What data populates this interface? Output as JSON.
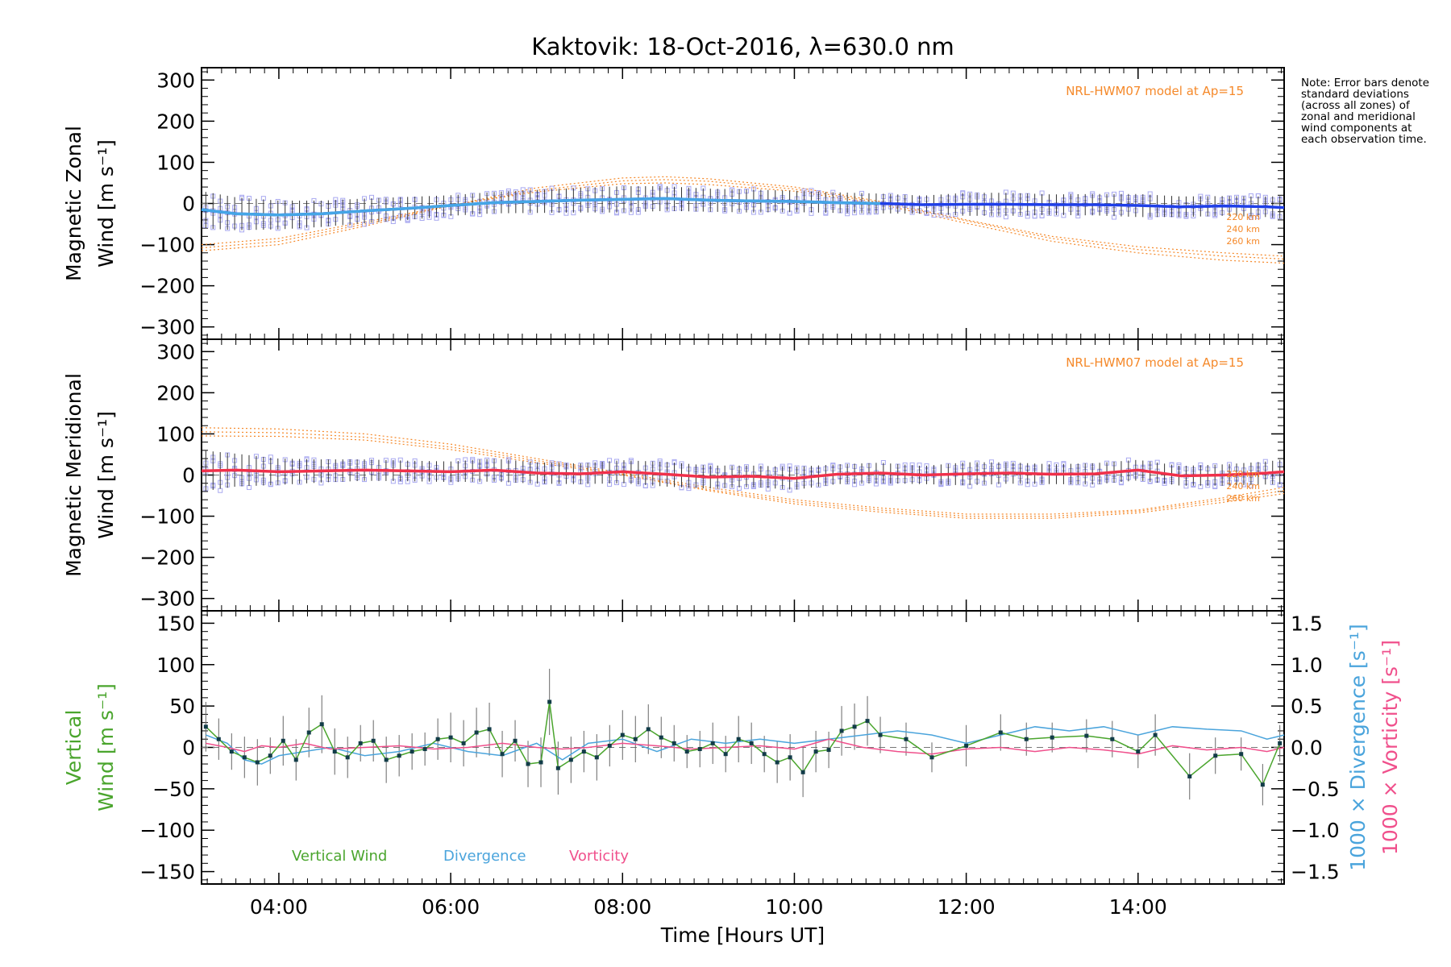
{
  "chart_data": {
    "title": "Kaktovik: 18-Oct-2016, λ=630.0 nm",
    "note": "Note: Error bars denote standard deviations (across all zones) of zonal and meridional wind components at each observation time.",
    "xlabel": "Time [Hours UT]",
    "x_unit": "hours UT",
    "xlim": [
      3.1,
      15.7
    ],
    "x_ticks": [
      {
        "value": 4,
        "label": "04:00"
      },
      {
        "value": 6,
        "label": "06:00"
      },
      {
        "value": 8,
        "label": "08:00"
      },
      {
        "value": 10,
        "label": "10:00"
      },
      {
        "value": 12,
        "label": "12:00"
      },
      {
        "value": 14,
        "label": "14:00"
      }
    ],
    "colors": {
      "zonal": "#1f3fe8",
      "zonal_light": "#45a6e6",
      "meridional": "#f0304a",
      "model": "#f5892a",
      "scatter": "#a9a9f0",
      "vertical": "#4aa52d",
      "divergence": "#4aa4dc",
      "vorticity": "#f0508c"
    },
    "panels": [
      {
        "type": "line",
        "ylabel_lines": [
          "Magnetic Zonal",
          "Wind [m s⁻¹]"
        ],
        "ylim": [
          -330,
          330
        ],
        "yticks": [
          -300,
          -200,
          -100,
          0,
          100,
          200,
          300
        ],
        "ytick_labels": [
          "−300",
          "−200",
          "−100",
          "0",
          "100",
          "200",
          "300"
        ],
        "model_label": "NRL-HWM07 model at Ap=15",
        "model_alt_labels": [
          "220 km",
          "240 km",
          "260 km"
        ],
        "series": [
          {
            "role": "mean",
            "x": [
              3.1,
              3.5,
              4.0,
              4.5,
              5.0,
              5.5,
              6.0,
              6.5,
              7.0,
              7.5,
              8.0,
              8.5,
              9.0,
              9.5,
              10.0,
              10.5,
              11.0,
              11.5,
              12.0,
              12.5,
              13.0,
              13.5,
              14.0,
              14.5,
              15.0,
              15.5,
              15.7
            ],
            "values": [
              -15,
              -25,
              -28,
              -25,
              -18,
              -12,
              -5,
              2,
              5,
              8,
              10,
              12,
              8,
              6,
              5,
              2,
              0,
              -3,
              -2,
              -2,
              -3,
              -3,
              -5,
              -8,
              -6,
              -8,
              -10
            ],
            "errors": [
              45,
              40,
              35,
              32,
              30,
              28,
              25,
              26,
              28,
              30,
              32,
              30,
              28,
              28,
              26,
              25,
              24,
              22,
              28,
              28,
              25,
              26,
              28,
              25,
              24,
              25,
              28
            ]
          }
        ],
        "model": [
          {
            "name": "220 km",
            "x": [
              3.1,
              4.0,
              5.0,
              6.0,
              7.0,
              8.0,
              8.5,
              9.0,
              10.0,
              11.0,
              12.0,
              13.0,
              14.0,
              15.0,
              15.7
            ],
            "values": [
              -115,
              -100,
              -55,
              -5,
              38,
              62,
              65,
              60,
              40,
              5,
              -40,
              -80,
              -105,
              -120,
              -128
            ]
          },
          {
            "name": "240 km",
            "x": [
              3.1,
              4.0,
              5.0,
              6.0,
              7.0,
              8.0,
              8.5,
              9.0,
              10.0,
              11.0,
              12.0,
              13.0,
              14.0,
              15.0,
              15.7
            ],
            "values": [
              -108,
              -92,
              -50,
              -5,
              32,
              55,
              58,
              54,
              35,
              2,
              -42,
              -85,
              -112,
              -128,
              -135
            ]
          },
          {
            "name": "260 km",
            "x": [
              3.1,
              4.0,
              5.0,
              6.0,
              7.0,
              8.0,
              8.5,
              9.0,
              10.0,
              11.0,
              12.0,
              13.0,
              14.0,
              15.0,
              15.7
            ],
            "values": [
              -100,
              -85,
              -45,
              -4,
              28,
              48,
              50,
              46,
              30,
              -2,
              -48,
              -92,
              -120,
              -138,
              -145
            ]
          }
        ]
      },
      {
        "type": "line",
        "ylabel_lines": [
          "Magnetic Meridional",
          "Wind [m s⁻¹]"
        ],
        "ylim": [
          -330,
          330
        ],
        "yticks": [
          -300,
          -200,
          -100,
          0,
          100,
          200,
          300
        ],
        "ytick_labels": [
          "−300",
          "−200",
          "−100",
          "0",
          "100",
          "200",
          "300"
        ],
        "model_label": "NRL-HWM07 model at Ap=15",
        "model_alt_labels": [
          "220 km",
          "240 km",
          "260 km"
        ],
        "series": [
          {
            "role": "mean",
            "x": [
              3.1,
              3.5,
              4.0,
              4.5,
              5.0,
              5.5,
              6.0,
              6.5,
              7.0,
              7.5,
              8.0,
              8.5,
              9.0,
              9.5,
              10.0,
              10.5,
              11.0,
              11.5,
              12.0,
              12.5,
              13.0,
              13.5,
              14.0,
              14.5,
              15.0,
              15.5,
              15.7
            ],
            "values": [
              10,
              12,
              8,
              10,
              12,
              10,
              8,
              12,
              5,
              3,
              8,
              2,
              -5,
              -3,
              -8,
              2,
              5,
              0,
              3,
              5,
              2,
              3,
              12,
              -2,
              0,
              5,
              8
            ],
            "errors": [
              50,
              40,
              32,
              28,
              26,
              25,
              25,
              28,
              26,
              25,
              28,
              30,
              28,
              26,
              28,
              24,
              25,
              22,
              28,
              26,
              24,
              26,
              25,
              24,
              26,
              28,
              30
            ]
          }
        ],
        "model": [
          {
            "name": "220 km",
            "x": [
              3.1,
              4.0,
              5.0,
              6.0,
              7.0,
              8.0,
              9.0,
              10.0,
              11.0,
              12.0,
              13.0,
              14.0,
              15.0,
              15.7
            ],
            "values": [
              115,
              112,
              100,
              75,
              40,
              5,
              -30,
              -60,
              -80,
              -95,
              -95,
              -85,
              -55,
              -30
            ]
          },
          {
            "name": "240 km",
            "x": [
              3.1,
              4.0,
              5.0,
              6.0,
              7.0,
              8.0,
              9.0,
              10.0,
              11.0,
              12.0,
              13.0,
              14.0,
              15.0,
              15.7
            ],
            "values": [
              105,
              103,
              92,
              68,
              35,
              2,
              -35,
              -65,
              -85,
              -100,
              -100,
              -88,
              -60,
              -38
            ]
          },
          {
            "name": "260 km",
            "x": [
              3.1,
              4.0,
              5.0,
              6.0,
              7.0,
              8.0,
              9.0,
              10.0,
              11.0,
              12.0,
              13.0,
              14.0,
              15.0,
              15.7
            ],
            "values": [
              95,
              94,
              85,
              62,
              30,
              0,
              -38,
              -70,
              -90,
              -105,
              -105,
              -92,
              -66,
              -45
            ]
          }
        ]
      },
      {
        "type": "line",
        "ylabel_lines": [
          "Vertical",
          "Wind [m s⁻¹]"
        ],
        "ylim": [
          -165,
          165
        ],
        "yticks": [
          -150,
          -100,
          -50,
          0,
          50,
          100,
          150
        ],
        "ytick_labels": [
          "−150",
          "−100",
          "−50",
          "0",
          "50",
          "100",
          "150"
        ],
        "y2label_lines": [
          "1000 × Divergence [s⁻¹]",
          "1000 × Vorticity [s⁻¹]"
        ],
        "y2lim": [
          -1.65,
          1.65
        ],
        "y2ticks": [
          -1.5,
          -1.0,
          -0.5,
          0.0,
          0.5,
          1.0,
          1.5
        ],
        "y2tick_labels": [
          "−1.5",
          "−1.0",
          "−0.5",
          "0.0",
          "0.5",
          "1.0",
          "1.5"
        ],
        "legend": [
          "Vertical Wind",
          "Divergence",
          "Vorticity"
        ],
        "series": [
          {
            "name": "Vertical Wind",
            "x": [
              3.15,
              3.3,
              3.45,
              3.6,
              3.75,
              3.9,
              4.05,
              4.2,
              4.35,
              4.5,
              4.65,
              4.8,
              4.95,
              5.1,
              5.25,
              5.4,
              5.55,
              5.7,
              5.85,
              6.0,
              6.15,
              6.3,
              6.45,
              6.6,
              6.75,
              6.9,
              7.05,
              7.15,
              7.25,
              7.4,
              7.55,
              7.7,
              7.85,
              8.0,
              8.15,
              8.3,
              8.45,
              8.6,
              8.75,
              8.9,
              9.05,
              9.2,
              9.35,
              9.5,
              9.65,
              9.8,
              9.95,
              10.1,
              10.25,
              10.4,
              10.55,
              10.7,
              10.85,
              11.0,
              11.3,
              11.6,
              12.0,
              12.4,
              12.7,
              13.0,
              13.4,
              13.7,
              14.0,
              14.2,
              14.6,
              14.9,
              15.2,
              15.45,
              15.65
            ],
            "values": [
              25,
              10,
              -5,
              -12,
              -18,
              -10,
              8,
              -15,
              18,
              28,
              -5,
              -12,
              5,
              8,
              -15,
              -10,
              -5,
              -2,
              10,
              12,
              5,
              18,
              22,
              -8,
              8,
              -20,
              -18,
              55,
              -25,
              -15,
              -5,
              -12,
              2,
              15,
              10,
              22,
              12,
              5,
              -5,
              -2,
              5,
              -8,
              10,
              5,
              -8,
              -18,
              -12,
              -30,
              -5,
              -3,
              20,
              25,
              32,
              15,
              10,
              -12,
              2,
              18,
              10,
              12,
              14,
              10,
              -5,
              15,
              -35,
              -10,
              -8,
              -45,
              5
            ],
            "errors": [
              30,
              25,
              22,
              25,
              28,
              22,
              30,
              25,
              30,
              35,
              28,
              25,
              22,
              25,
              28,
              25,
              22,
              20,
              25,
              30,
              28,
              30,
              32,
              28,
              25,
              28,
              30,
              40,
              32,
              28,
              25,
              28,
              25,
              30,
              28,
              30,
              25,
              22,
              20,
              22,
              25,
              22,
              28,
              25,
              22,
              25,
              28,
              30,
              25,
              22,
              30,
              28,
              30,
              22,
              20,
              18,
              25,
              22,
              20,
              18,
              20,
              22,
              20,
              25,
              28,
              22,
              20,
              25,
              22
            ]
          },
          {
            "name": "Divergence",
            "axis": "y2",
            "x": [
              3.15,
              3.4,
              3.6,
              3.8,
              4.0,
              4.3,
              4.6,
              5.0,
              5.4,
              5.8,
              6.2,
              6.6,
              7.0,
              7.3,
              7.6,
              8.0,
              8.4,
              8.8,
              9.2,
              9.6,
              10.0,
              10.4,
              10.8,
              11.2,
              11.6,
              12.0,
              12.4,
              12.8,
              13.2,
              13.6,
              14.0,
              14.4,
              14.8,
              15.2,
              15.5,
              15.7
            ],
            "values": [
              0.15,
              0.05,
              -0.15,
              -0.2,
              -0.1,
              -0.05,
              0.0,
              -0.1,
              -0.05,
              0.05,
              -0.05,
              -0.1,
              0.05,
              -0.15,
              0.05,
              0.1,
              -0.05,
              0.1,
              0.05,
              0.1,
              0.05,
              0.1,
              0.15,
              0.2,
              0.15,
              0.05,
              0.15,
              0.25,
              0.2,
              0.25,
              0.15,
              0.25,
              0.22,
              0.2,
              0.1,
              0.15
            ]
          },
          {
            "name": "Vorticity",
            "axis": "y2",
            "x": [
              3.15,
              3.4,
              3.6,
              3.8,
              4.0,
              4.3,
              4.6,
              5.0,
              5.4,
              5.8,
              6.2,
              6.6,
              7.0,
              7.3,
              7.6,
              8.0,
              8.4,
              8.8,
              9.2,
              9.6,
              10.0,
              10.4,
              10.8,
              11.2,
              11.6,
              12.0,
              12.4,
              12.8,
              13.2,
              13.6,
              14.0,
              14.4,
              14.8,
              15.2,
              15.5,
              15.7
            ],
            "values": [
              0.05,
              0.0,
              -0.05,
              0.02,
              0.0,
              0.05,
              -0.02,
              0.0,
              0.02,
              -0.02,
              0.0,
              0.05,
              0.0,
              -0.02,
              0.0,
              0.05,
              0.02,
              -0.02,
              0.0,
              0.02,
              -0.02,
              0.1,
              0.0,
              -0.05,
              -0.08,
              -0.02,
              0.0,
              -0.05,
              0.0,
              -0.03,
              -0.08,
              0.02,
              -0.03,
              0.0,
              -0.05,
              0.0
            ]
          }
        ]
      }
    ]
  }
}
